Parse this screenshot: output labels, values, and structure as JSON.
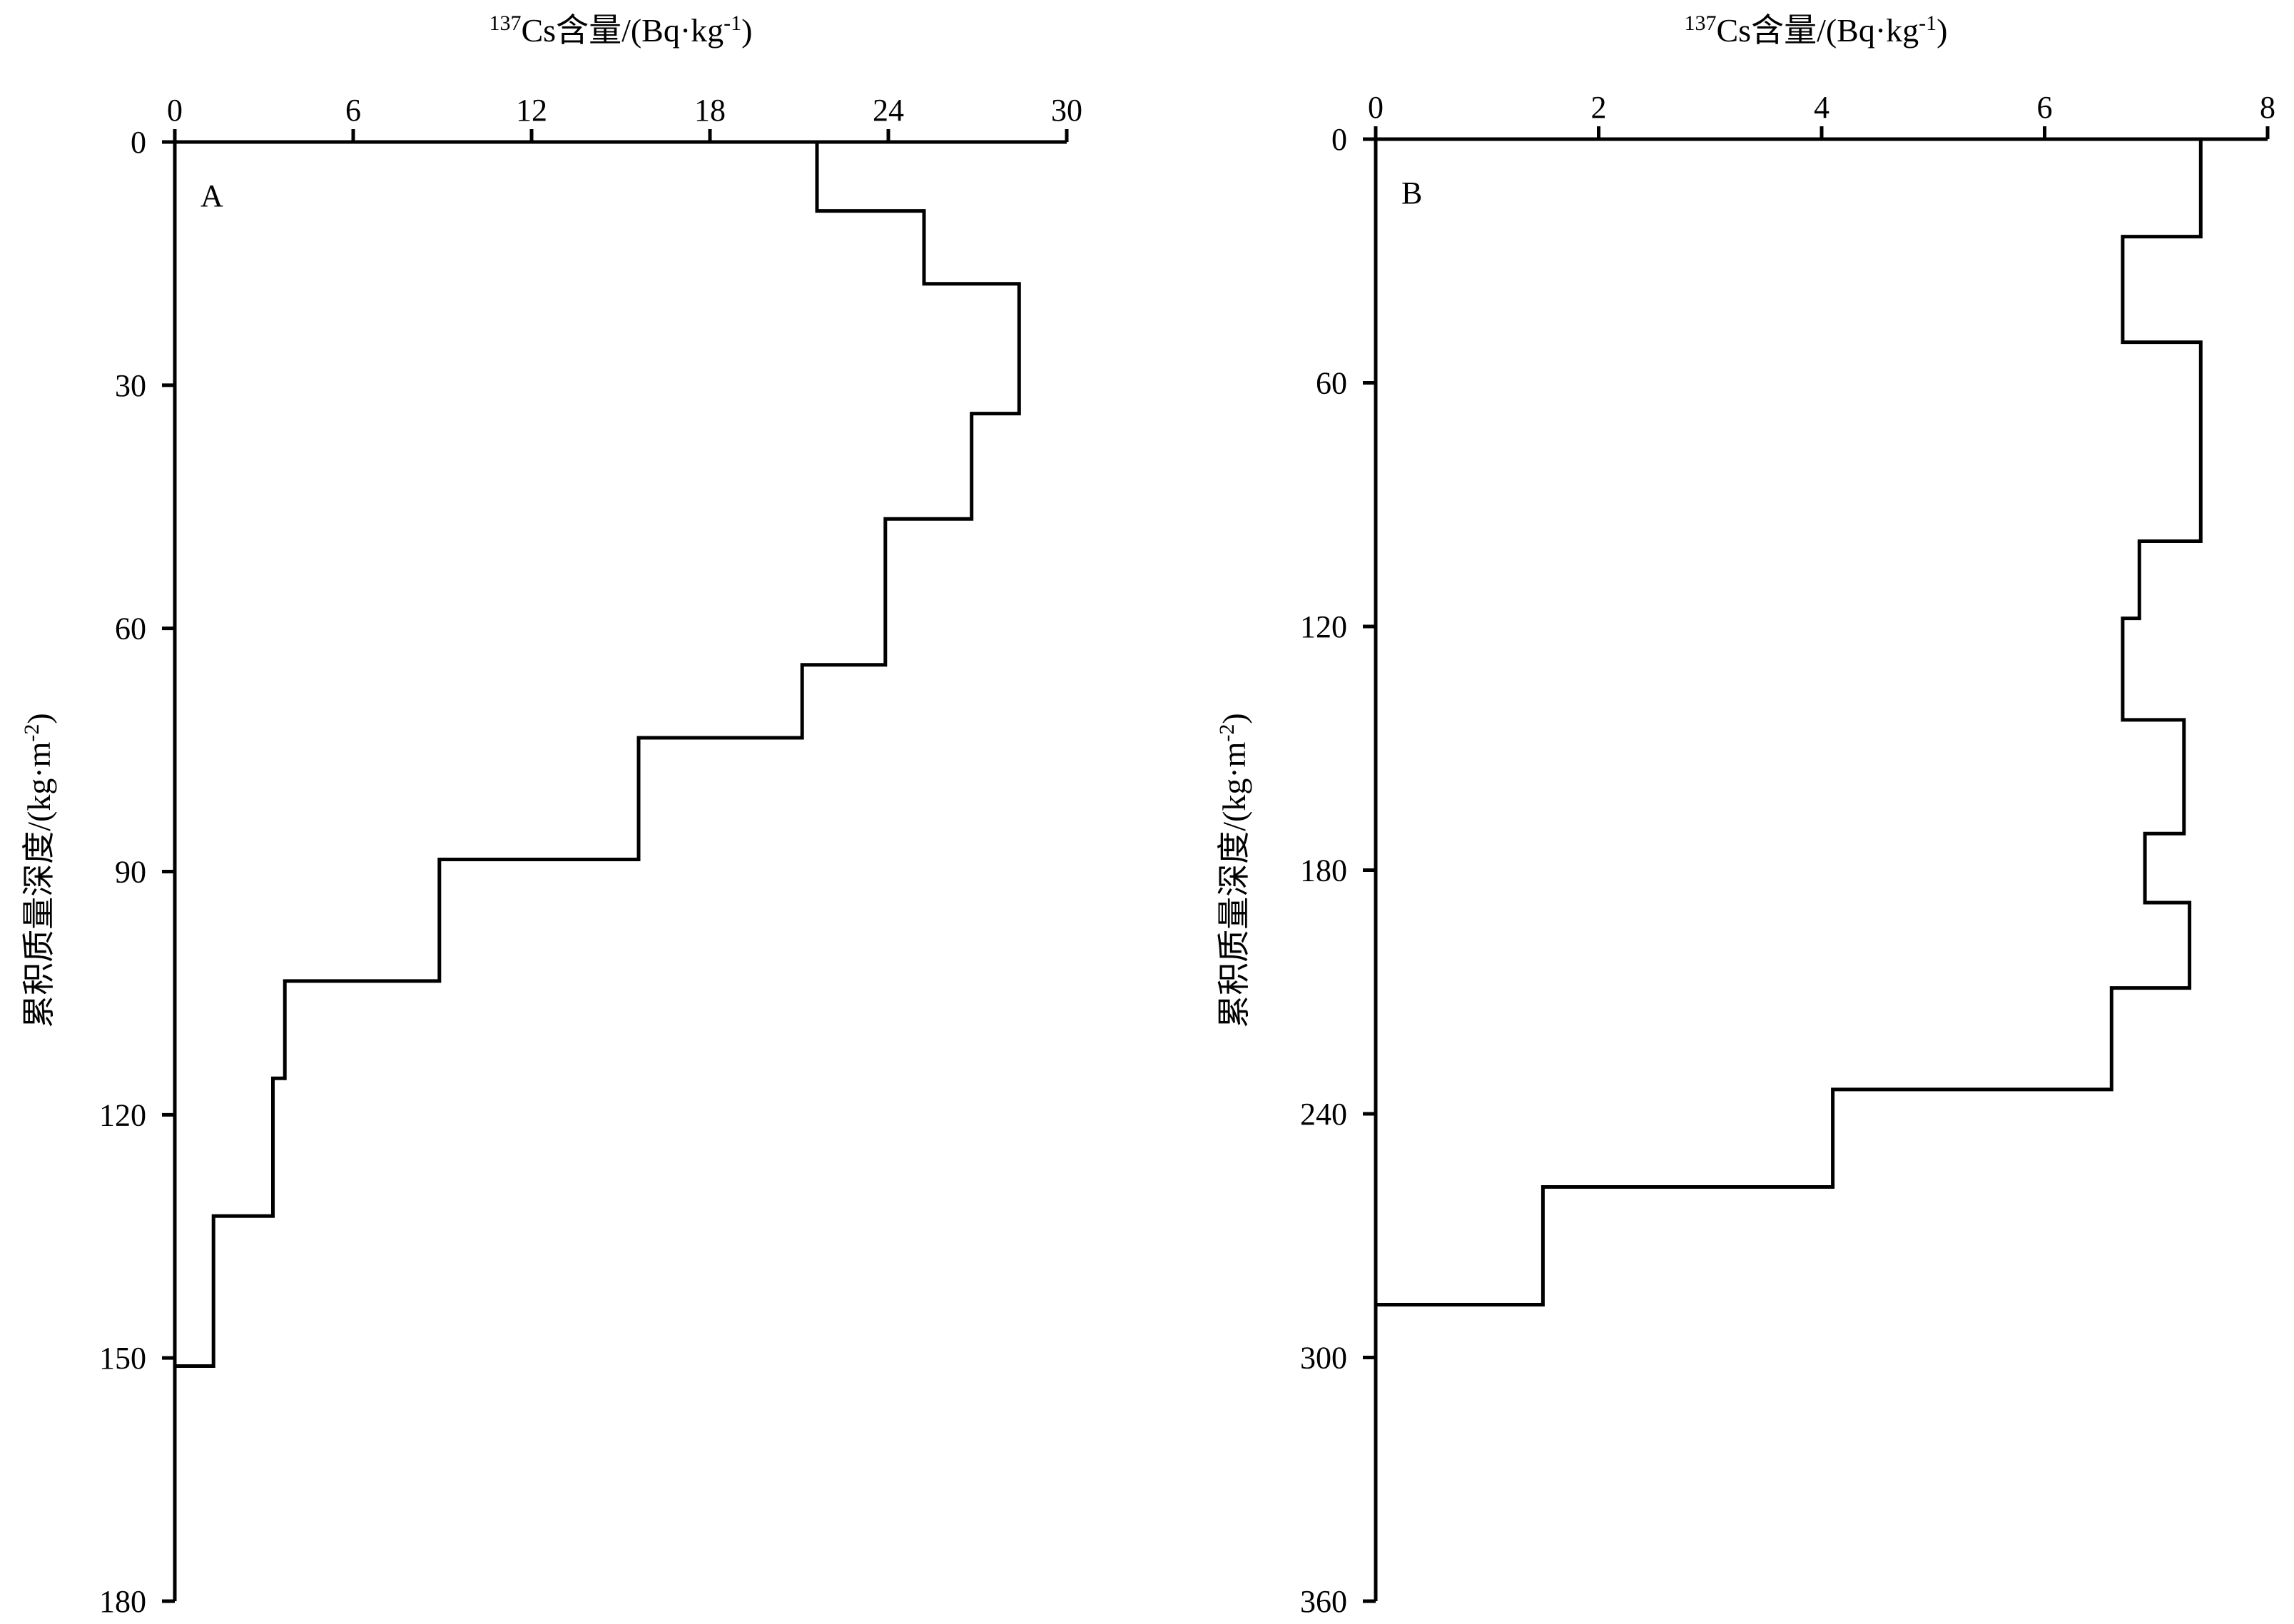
{
  "chart_data": [
    {
      "type": "line",
      "panel_label": "A",
      "x_axis": {
        "title_sup": "137",
        "title_main": "Cs含量/(Bq·kg",
        "title_exp": "-1",
        "title_tail": ")",
        "position": "top",
        "range": [
          0,
          30
        ],
        "ticks": [
          0,
          6,
          12,
          18,
          24,
          30
        ]
      },
      "y_axis": {
        "title_main": "累积质量深度/(kg·m",
        "title_exp": "-2",
        "title_tail": ")",
        "inverted": true,
        "range": [
          0,
          180
        ],
        "ticks": [
          0,
          30,
          60,
          90,
          120,
          150,
          180
        ]
      },
      "series": [
        {
          "style": "step",
          "points": [
            [
              21.6,
              0
            ],
            [
              21.6,
              8.5
            ],
            [
              25.2,
              8.5
            ],
            [
              25.2,
              17.5
            ],
            [
              28.4,
              17.5
            ],
            [
              28.4,
              33.5
            ],
            [
              26.8,
              33.5
            ],
            [
              26.8,
              46.5
            ],
            [
              23.9,
              46.5
            ],
            [
              23.9,
              64.5
            ],
            [
              21.1,
              64.5
            ],
            [
              21.1,
              73.5
            ],
            [
              15.6,
              73.5
            ],
            [
              15.6,
              88.5
            ],
            [
              8.9,
              88.5
            ],
            [
              8.9,
              103.5
            ],
            [
              3.7,
              103.5
            ],
            [
              3.7,
              115.5
            ],
            [
              3.3,
              115.5
            ],
            [
              3.3,
              132.5
            ],
            [
              1.3,
              132.5
            ],
            [
              1.3,
              151
            ],
            [
              0,
              151
            ]
          ]
        }
      ]
    },
    {
      "type": "line",
      "panel_label": "B",
      "x_axis": {
        "title_sup": "137",
        "title_main": "Cs含量/(Bq·kg",
        "title_exp": "-1",
        "title_tail": ")",
        "position": "top",
        "range": [
          0,
          8
        ],
        "ticks": [
          0,
          2,
          4,
          6,
          8
        ]
      },
      "y_axis": {
        "title_main": "累积质量深度/(kg·m",
        "title_exp": "-2",
        "title_tail": ")",
        "inverted": true,
        "range": [
          0,
          360
        ],
        "ticks": [
          0,
          60,
          120,
          180,
          240,
          300,
          360
        ]
      },
      "series": [
        {
          "style": "step",
          "points": [
            [
              7.4,
              0
            ],
            [
              7.4,
              24
            ],
            [
              6.7,
              24
            ],
            [
              6.7,
              50
            ],
            [
              7.4,
              50
            ],
            [
              7.4,
              99
            ],
            [
              6.85,
              99
            ],
            [
              6.85,
              118
            ],
            [
              6.7,
              118
            ],
            [
              6.7,
              143
            ],
            [
              7.25,
              143
            ],
            [
              7.25,
              171
            ],
            [
              6.9,
              171
            ],
            [
              6.9,
              188
            ],
            [
              7.3,
              188
            ],
            [
              7.3,
              209
            ],
            [
              6.6,
              209
            ],
            [
              6.6,
              234
            ],
            [
              4.1,
              234
            ],
            [
              4.1,
              258
            ],
            [
              1.5,
              258
            ],
            [
              1.5,
              287
            ],
            [
              0,
              287
            ]
          ]
        }
      ]
    }
  ]
}
